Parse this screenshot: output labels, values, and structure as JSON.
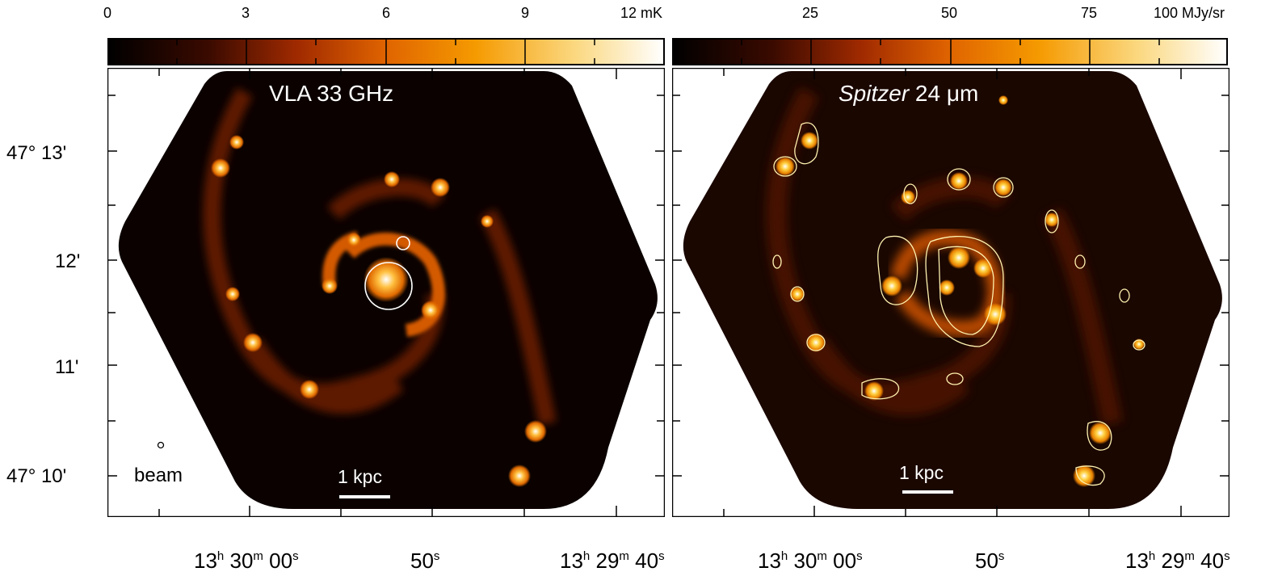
{
  "left_panel": {
    "title": "VLA 33 GHz",
    "colorbar": {
      "ticks": [
        "0",
        "3",
        "6",
        "9"
      ],
      "unit_label": "12 mK"
    },
    "scale_bar": "1 kpc",
    "beam_label": "beam"
  },
  "right_panel": {
    "title_italic": "Spitzer",
    "title_rest": " 24 μm",
    "colorbar": {
      "ticks": [
        "25",
        "50",
        "75"
      ],
      "unit_label": "100 MJy/sr"
    },
    "scale_bar": "1 kpc"
  },
  "y_axis": {
    "labels": [
      "47° 13'",
      "12'",
      "11'",
      "47° 10'"
    ]
  },
  "x_axis": {
    "left": [
      {
        "h": "13",
        "m": "30",
        "s": "00"
      },
      {
        "s": "50"
      },
      {
        "h": "13",
        "m": "29",
        "s": "40"
      }
    ],
    "right": [
      {
        "h": "13",
        "m": "30",
        "s": "00"
      },
      {
        "s": "50"
      },
      {
        "h": "13",
        "m": "29",
        "s": "40"
      }
    ]
  },
  "colors": {
    "background_map": "#0b0200",
    "emission_low": "#6a1a00",
    "emission_mid": "#e06a00",
    "emission_high": "#ffd060",
    "emission_peak": "#ffffff",
    "contour": "#fff2b0"
  }
}
